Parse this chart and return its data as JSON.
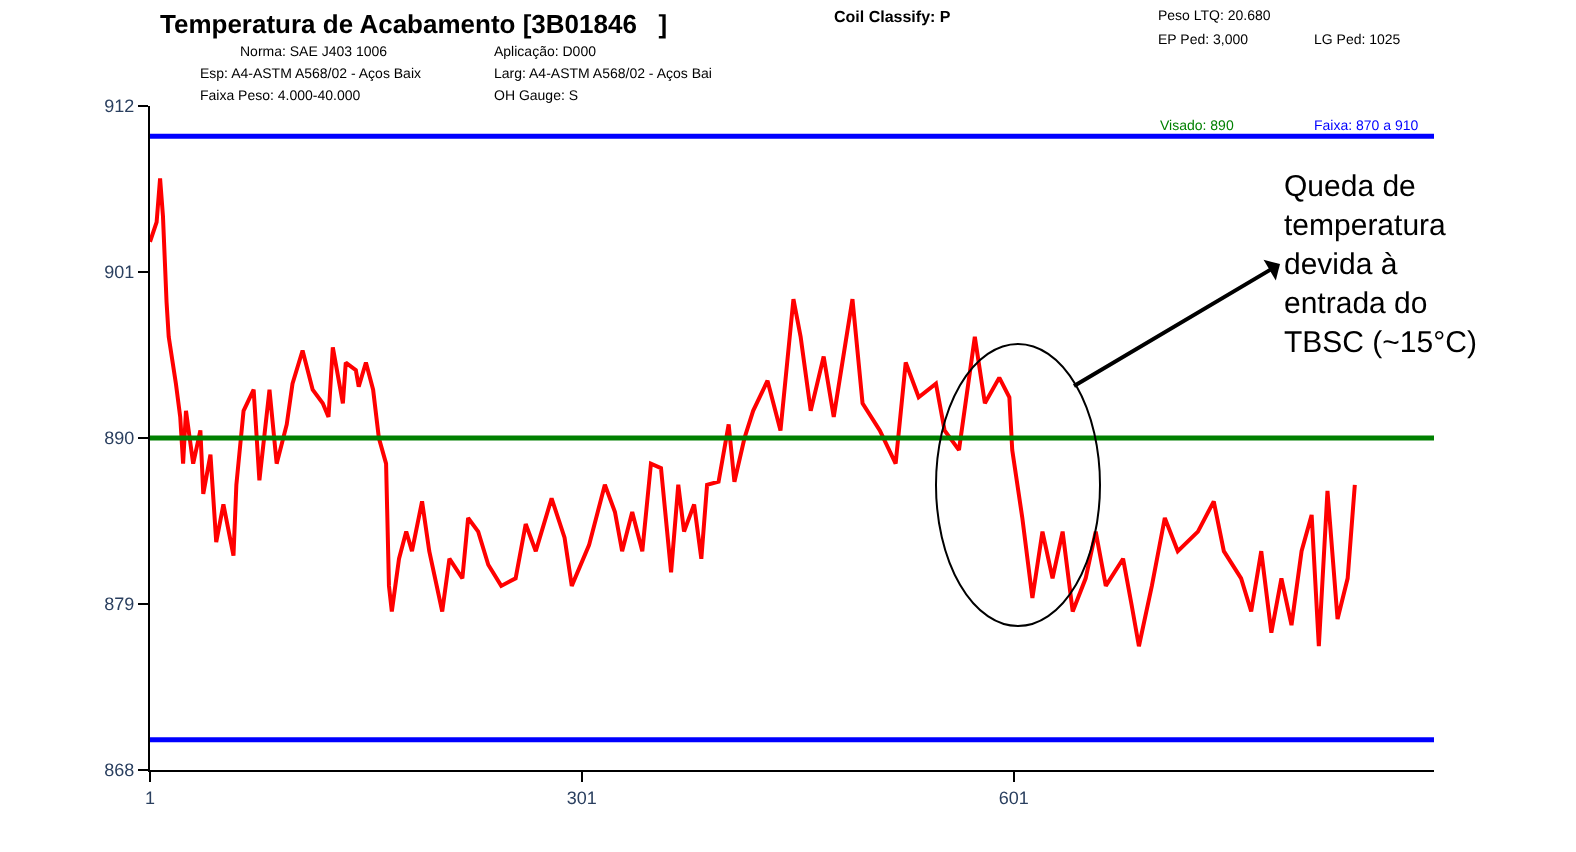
{
  "chart_data": {
    "type": "line",
    "title": "Temperatura de Acabamento [3B01846   ]",
    "x": [
      1,
      5.6,
      8,
      10,
      12.5,
      14,
      19,
      22,
      24,
      26,
      31,
      36,
      38,
      43,
      47,
      52,
      59,
      61,
      66,
      73,
      77,
      84,
      89,
      96,
      100,
      107,
      114,
      121,
      125,
      128,
      135,
      137,
      144,
      146,
      151,
      156,
      160,
      165,
      167,
      169,
      174,
      179,
      183,
      190,
      195,
      204,
      209,
      218,
      222,
      229,
      236,
      245,
      255,
      262,
      269,
      280,
      289,
      294,
      306,
      317,
      324,
      329,
      336,
      343,
      349,
      356,
      363,
      368,
      372,
      379,
      384,
      388,
      396,
      403,
      407,
      414,
      420,
      430,
      439,
      448,
      453,
      460,
      469,
      476,
      489,
      496,
      508,
      519,
      526,
      535,
      547,
      553,
      563,
      574,
      581,
      591,
      598,
      600,
      607,
      614,
      621,
      628,
      635,
      642,
      651,
      658,
      665,
      677,
      683,
      688,
      697,
      706,
      715,
      729,
      740,
      747,
      759,
      766,
      773,
      780,
      787,
      794,
      801,
      808,
      813,
      819,
      826,
      833,
      838
    ],
    "series": [
      {
        "color": "#ff0000",
        "values": [
          903,
          904.3,
          907.2,
          904.7,
          899,
          896.7,
          893.6,
          891.4,
          888.3,
          891.8,
          888.3,
          890.5,
          886.3,
          888.9,
          883.1,
          885.6,
          882.2,
          886.9,
          891.8,
          893.2,
          887.2,
          893.2,
          888.3,
          890.9,
          893.6,
          895.8,
          893.2,
          892.3,
          891.4,
          896,
          892.3,
          895,
          894.5,
          893.4,
          895,
          893.2,
          890,
          888.3,
          880.2,
          878.5,
          882,
          883.8,
          882.5,
          885.8,
          882.5,
          878.5,
          882,
          880.7,
          884.7,
          883.8,
          881.6,
          880.2,
          880.7,
          884.3,
          882.5,
          886,
          883.4,
          880.2,
          882.9,
          886.9,
          885.1,
          882.5,
          885.1,
          882.5,
          888.3,
          888,
          881.1,
          886.9,
          883.8,
          885.6,
          882,
          886.9,
          887.1,
          890.9,
          887.1,
          890,
          891.8,
          893.8,
          890.5,
          899.2,
          896.7,
          891.8,
          895.4,
          891.4,
          899.2,
          892.3,
          890.5,
          888.3,
          895,
          892.7,
          893.6,
          890.5,
          889.2,
          896.7,
          892.3,
          894,
          892.7,
          889.2,
          884.7,
          879.4,
          883.8,
          880.7,
          883.8,
          878.5,
          880.7,
          883.8,
          880.2,
          882,
          878.9,
          876.2,
          880.2,
          884.7,
          882.5,
          883.8,
          885.8,
          882.5,
          880.7,
          878.5,
          882.5,
          877.1,
          880.7,
          877.6,
          882.5,
          884.9,
          876.2,
          886.5,
          878,
          880.7,
          886.9
        ]
      }
    ],
    "xlim": [
      1,
      893
    ],
    "xticks": [
      1,
      301,
      601
    ],
    "ylim": [
      868,
      912
    ],
    "yticks": [
      868,
      879,
      890,
      901,
      912
    ],
    "line_style": "solid",
    "ref_lines": [
      {
        "axis": "y",
        "value": 890,
        "label": "Visado: 890",
        "color": "#008000"
      },
      {
        "axis": "y",
        "value": 910,
        "label": "Faixa: 870 a 910",
        "color": "#0000ff"
      },
      {
        "axis": "y",
        "value": 870,
        "color": "#0000ff"
      }
    ],
    "annotations": [
      "Norma: SAE J403 1006",
      "Aplicação: D000",
      "Esp: A4-ASTM A568/02 - Aços Baix",
      "Larg: A4-ASTM A568/02 - Aços Bai",
      "Faixa Peso: 4.000-40.000",
      "OH Gauge: S",
      "Coil Classify: P",
      "Peso LTQ: 20.680",
      "EP Ped: 3,000",
      "LG Ped: 1025",
      "Queda de\ntemperatura\ndevida à\nentrada do\nTBSC (~15°C)"
    ]
  }
}
